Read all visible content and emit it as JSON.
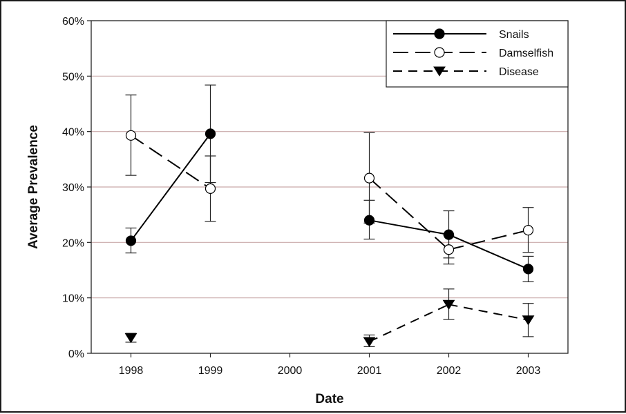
{
  "chart_data": {
    "type": "line",
    "xlabel": "Date",
    "ylabel": "Average Prevalence",
    "x": [
      1998,
      1999,
      2000,
      2001,
      2002,
      2003
    ],
    "x_tick_labels": [
      "1998",
      "1999",
      "2000",
      "2001",
      "2002",
      "2003"
    ],
    "y_tick_labels": [
      "0%",
      "10%",
      "20%",
      "30%",
      "40%",
      "50%",
      "60%"
    ],
    "ylim": [
      0,
      60
    ],
    "grid": "horizontal",
    "legend_position": "top-right",
    "series": [
      {
        "name": "Snails",
        "marker": "filled-circle",
        "line_style": "solid",
        "color": "#000000",
        "points": [
          {
            "x": 1998,
            "y": 20.3,
            "err_low": 18.1,
            "err_high": 22.6
          },
          {
            "x": 1999,
            "y": 39.6,
            "err_low": 30.8,
            "err_high": 48.4
          },
          {
            "x": 2001,
            "y": 24.0,
            "err_low": 20.6,
            "err_high": 27.6
          },
          {
            "x": 2002,
            "y": 21.4,
            "err_low": 17.2,
            "err_high": 25.7
          },
          {
            "x": 2003,
            "y": 15.2,
            "err_low": 12.9,
            "err_high": 17.5
          }
        ]
      },
      {
        "name": "Damselfish",
        "marker": "open-circle",
        "line_style": "long-dash",
        "color": "#000000",
        "points": [
          {
            "x": 1998,
            "y": 39.3,
            "err_low": 32.1,
            "err_high": 46.6
          },
          {
            "x": 1999,
            "y": 29.7,
            "err_low": 23.8,
            "err_high": 35.6
          },
          {
            "x": 2001,
            "y": 31.6,
            "err_low": 23.5,
            "err_high": 39.8
          },
          {
            "x": 2002,
            "y": 18.7,
            "err_low": 16.1,
            "err_high": 21.3
          },
          {
            "x": 2003,
            "y": 22.2,
            "err_low": 18.2,
            "err_high": 26.3
          }
        ]
      },
      {
        "name": "Disease",
        "marker": "filled-triangle-down",
        "line_style": "short-dash",
        "color": "#000000",
        "points": [
          {
            "x": 1998,
            "y": 2.8,
            "err_low": 2.0,
            "err_high": 3.6
          },
          {
            "x": 2001,
            "y": 2.1,
            "err_low": 1.2,
            "err_high": 3.3
          },
          {
            "x": 2002,
            "y": 8.8,
            "err_low": 6.1,
            "err_high": 11.6
          },
          {
            "x": 2003,
            "y": 6.0,
            "err_low": 3.0,
            "err_high": 9.0
          }
        ]
      }
    ]
  }
}
